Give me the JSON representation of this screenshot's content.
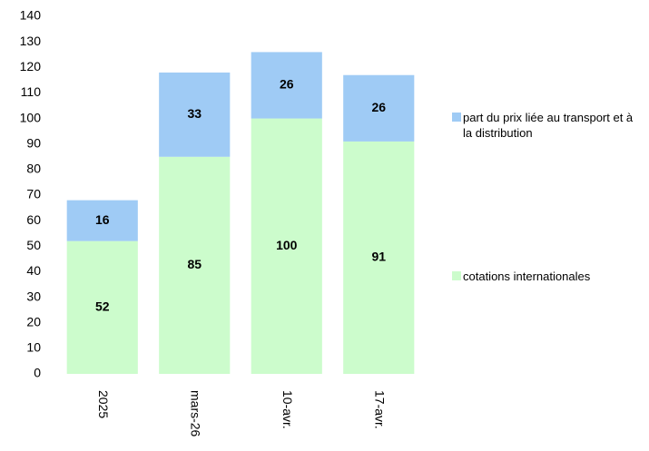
{
  "chart_data": {
    "type": "stacked_bar",
    "categories": [
      "2025",
      "mars-26",
      "10-avr.",
      "17-avr."
    ],
    "series": [
      {
        "name": "cotations internationales",
        "color": "#ccfccc",
        "values": [
          52,
          85,
          100,
          91
        ]
      },
      {
        "name": "part du prix liée au transport et à la distribution",
        "color": "#9fcbf5",
        "values": [
          16,
          33,
          26,
          26
        ]
      }
    ],
    "ylim": [
      0,
      140
    ],
    "yticks": [
      0,
      10,
      20,
      30,
      40,
      50,
      60,
      70,
      80,
      90,
      100,
      110,
      120,
      130,
      140
    ],
    "grid": false,
    "legend": "right"
  }
}
